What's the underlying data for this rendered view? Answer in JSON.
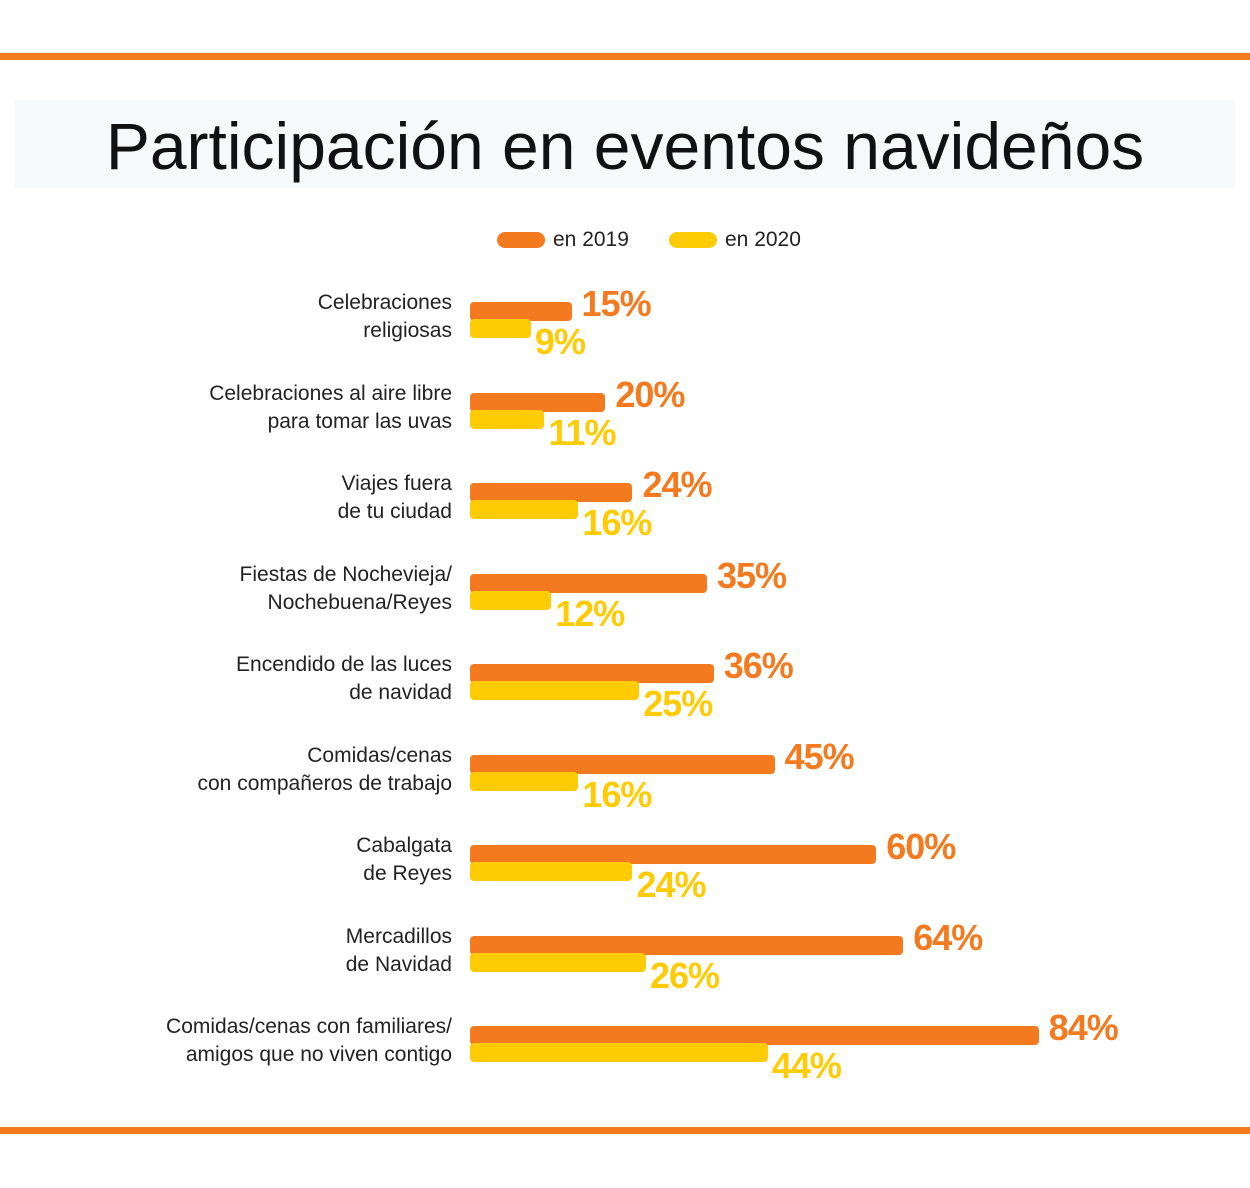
{
  "colors": {
    "y2019": "#f47a20",
    "y2020": "#ffcb05"
  },
  "chart_data": {
    "type": "bar",
    "orientation": "horizontal",
    "title": "Participación en eventos navideños",
    "legend": [
      "en 2019",
      "en 2020"
    ],
    "legend_position": "top",
    "categories": [
      [
        "Celebraciones",
        "religiosas"
      ],
      [
        "Celebraciones al aire libre",
        "para tomar las uvas"
      ],
      [
        "Viajes fuera",
        "de tu ciudad"
      ],
      [
        "Fiestas de Nochevieja/",
        "Nochebuena/Reyes"
      ],
      [
        "Encendido de las luces",
        "de navidad"
      ],
      [
        "Comidas/cenas",
        "con compañeros de trabajo"
      ],
      [
        "Cabalgata",
        "de Reyes"
      ],
      [
        "Mercadillos",
        "de Navidad"
      ],
      [
        "Comidas/cenas con familiares/",
        "amigos que no viven contigo"
      ]
    ],
    "series": [
      {
        "name": "en 2019",
        "values": [
          15,
          20,
          24,
          35,
          36,
          45,
          60,
          64,
          84
        ],
        "labels": [
          "15%",
          "20%",
          "24%",
          "35%",
          "36%",
          "45%",
          "60%",
          "64%",
          "84%"
        ]
      },
      {
        "name": "en 2020",
        "values": [
          9,
          11,
          16,
          12,
          25,
          16,
          24,
          26,
          44
        ],
        "labels": [
          "9%",
          "11%",
          "16%",
          "12%",
          "25%",
          "16%",
          "24%",
          "26%",
          "44%"
        ]
      }
    ],
    "xlim": [
      0,
      84
    ]
  }
}
